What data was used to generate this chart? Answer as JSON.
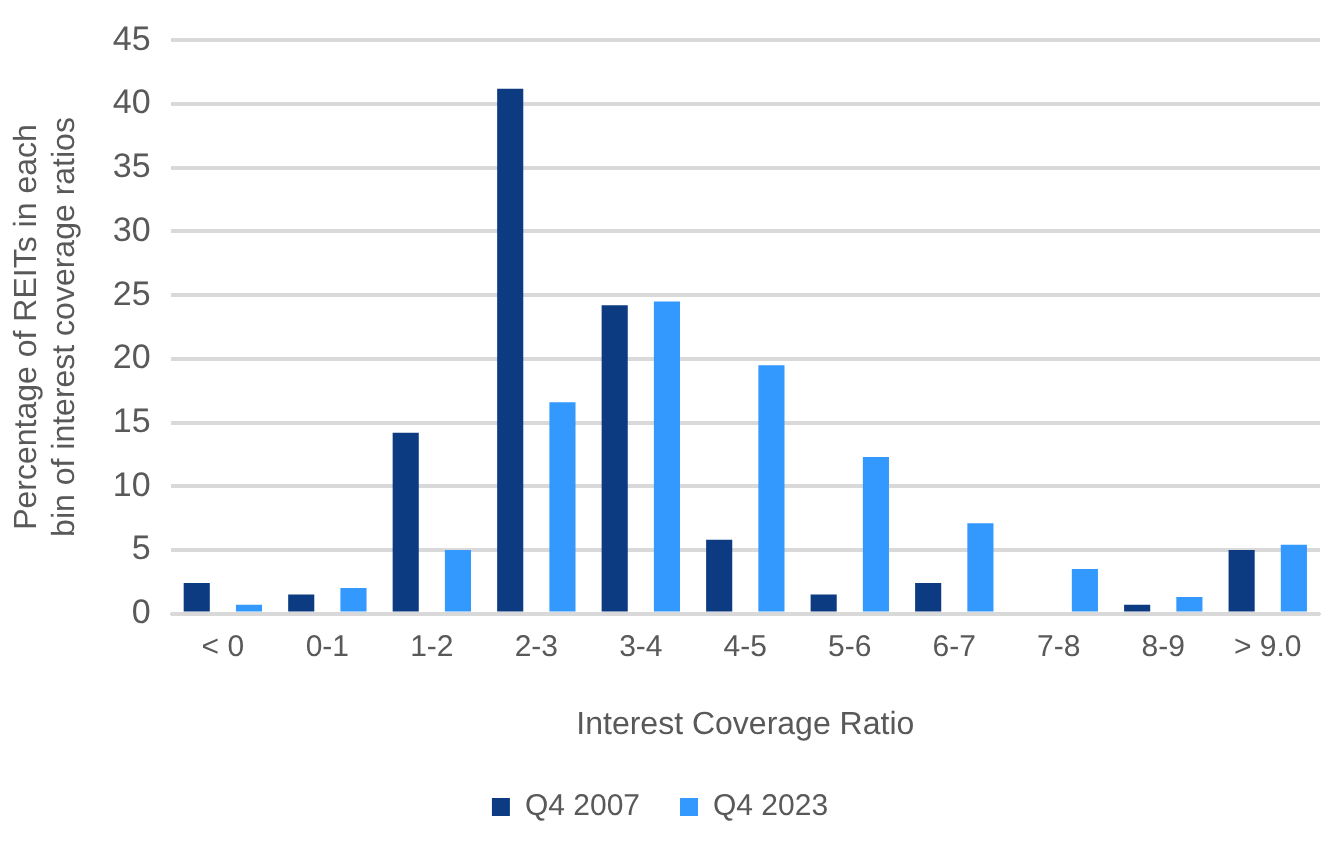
{
  "chart_data": {
    "type": "bar",
    "xlabel": "Interest Coverage Ratio",
    "ylabel": "Percentage of REITs in each bin of interest coverage ratios",
    "categories": [
      "< 0",
      "0-1",
      "1-2",
      "2-3",
      "3-4",
      "4-5",
      "5-6",
      "6-7",
      "7-8",
      "8-9",
      "> 9.0"
    ],
    "series": [
      {
        "name": "Q4 2007",
        "color": "#0d3b82",
        "values": [
          2.4,
          1.5,
          14.2,
          41.2,
          24.2,
          5.8,
          1.5,
          2.4,
          0,
          0.7,
          5.0
        ]
      },
      {
        "name": "Q4 2023",
        "color": "#3399ff",
        "values": [
          0.7,
          2.0,
          5.0,
          16.6,
          24.5,
          19.5,
          12.3,
          7.1,
          3.5,
          1.3,
          5.4
        ]
      }
    ],
    "ylim": [
      0,
      45
    ],
    "yticks": [
      0,
      5,
      10,
      15,
      20,
      25,
      30,
      35,
      40,
      45
    ],
    "grid": "y",
    "legend": "bottom"
  }
}
